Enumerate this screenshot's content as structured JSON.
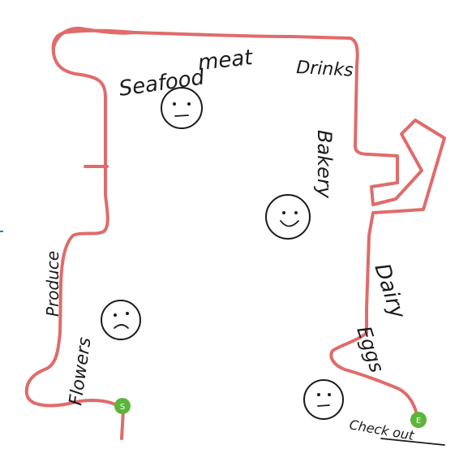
{
  "diagram": {
    "labels": {
      "seafood": "Seafood",
      "meat": "meat",
      "drinks": "Drinks",
      "bakery": "Bakery",
      "produce": "Produce",
      "flowers": "Flowers",
      "dairy": "Dairy",
      "eggs": "Eggs",
      "checkout": "Check out",
      "start_marker": "S",
      "end_marker": "E"
    },
    "faces": [
      {
        "name": "seafood-meat-face",
        "mood": "neutral"
      },
      {
        "name": "bakery-face",
        "mood": "happy"
      },
      {
        "name": "produce-flowers-face",
        "mood": "sad"
      },
      {
        "name": "checkout-face",
        "mood": "neutral"
      }
    ],
    "colors": {
      "route": "#e06b6b",
      "marker": "#5bb53a",
      "ink": "#1a1a1a",
      "edge_mark": "#2f6fe0"
    }
  }
}
